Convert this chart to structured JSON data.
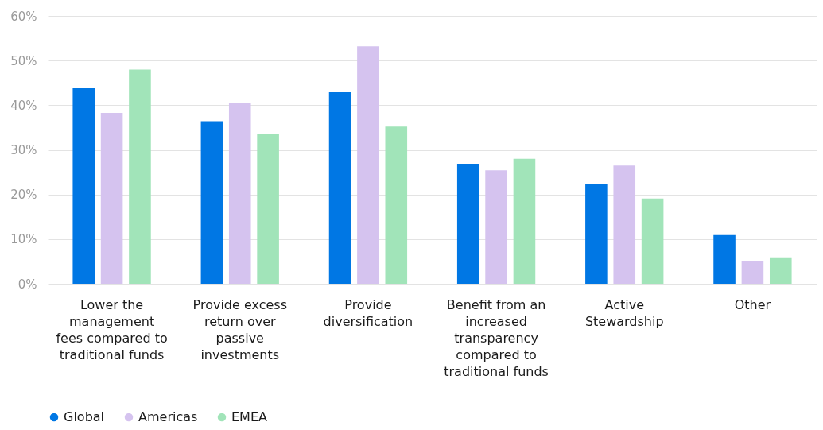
{
  "chart_data": {
    "type": "bar",
    "categories": [
      "Lower the management fees compared to traditional funds",
      "Provide excess return over passive investments",
      "Provide diversification",
      "Benefit from an increased transparency compared to traditional funds",
      "Active Stewardship",
      "Other"
    ],
    "series": [
      {
        "name": "Global",
        "color": "#0077e4",
        "values": [
          43.8,
          36.4,
          42.9,
          26.9,
          22.3,
          10.9
        ]
      },
      {
        "name": "Americas",
        "color": "#d5c3ef",
        "values": [
          38.3,
          40.4,
          53.2,
          25.4,
          26.5,
          5.0
        ]
      },
      {
        "name": "EMEA",
        "color": "#a1e4b9",
        "values": [
          48.0,
          33.6,
          35.2,
          28.0,
          19.1,
          5.9
        ]
      }
    ],
    "ylim": [
      0,
      60
    ],
    "yticks": [
      {
        "value": 0,
        "label": "0%"
      },
      {
        "value": 10,
        "label": "10%"
      },
      {
        "value": 20,
        "label": "20%"
      },
      {
        "value": 30,
        "label": "30%"
      },
      {
        "value": 40,
        "label": "40%"
      },
      {
        "value": 50,
        "label": "50%"
      },
      {
        "value": 60,
        "label": "60%"
      }
    ],
    "grid": "y",
    "legend": "bottom left"
  }
}
